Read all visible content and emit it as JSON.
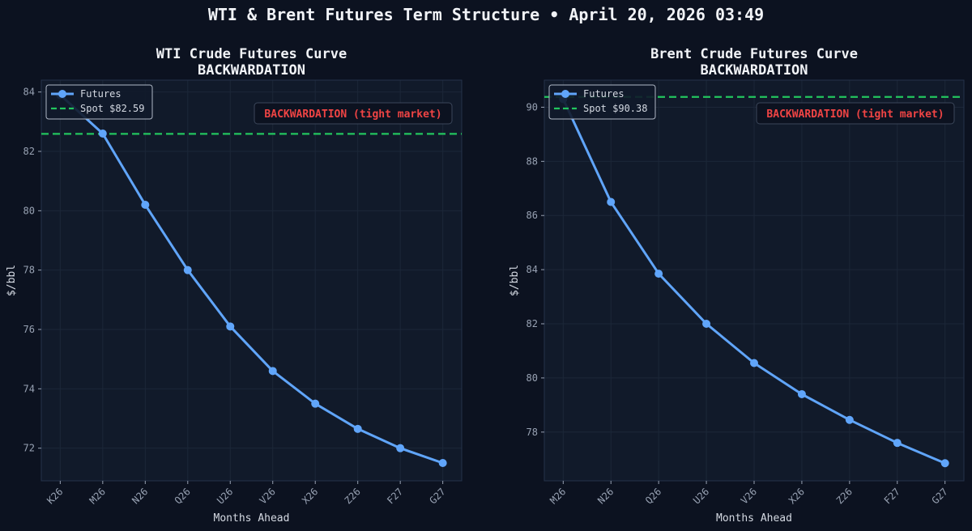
{
  "figure": {
    "title": "WTI & Brent Futures Term Structure • April 20, 2026 03:49"
  },
  "colors": {
    "background": "#0c1220",
    "plot_bg": "#111a2a",
    "grid": "#1c2738",
    "axis_frame": "#25324a",
    "tick_text": "#98a2b3",
    "label_text": "#d4d9e2",
    "futures_line": "#60a5fa",
    "spot_line": "#22c55e",
    "backwardation_text": "#ef4444",
    "legend_bg": "#111a2a",
    "legend_border": "#b0b8c6"
  },
  "chart_data": [
    {
      "type": "line",
      "title": "WTI Crude Futures Curve",
      "subtitle": "BACKWARDATION",
      "xlabel": "Months Ahead",
      "ylabel": "$/bbl",
      "categories": [
        "K26",
        "M26",
        "N26",
        "Q26",
        "U26",
        "V26",
        "X26",
        "Z26",
        "F27",
        "G27"
      ],
      "series": [
        {
          "name": "Futures",
          "values": [
            83.9,
            82.6,
            80.2,
            78.0,
            76.1,
            74.6,
            73.5,
            72.65,
            72.0,
            71.5
          ]
        }
      ],
      "spot": {
        "label": "Spot $82.59",
        "value": 82.59
      },
      "annotation": "BACKWARDATION (tight market)",
      "ylim": [
        70.9,
        84.4
      ],
      "yticks": [
        72,
        74,
        76,
        78,
        80,
        82,
        84
      ],
      "grid": true,
      "legend": "top-left"
    },
    {
      "type": "line",
      "title": "Brent Crude Futures Curve",
      "subtitle": "BACKWARDATION",
      "xlabel": "Months Ahead",
      "ylabel": "$/bbl",
      "categories": [
        "M26",
        "N26",
        "Q26",
        "U26",
        "V26",
        "X26",
        "Z26",
        "F27",
        "G27"
      ],
      "series": [
        {
          "name": "Futures",
          "values": [
            90.3,
            86.5,
            83.85,
            82.0,
            80.55,
            79.4,
            78.45,
            77.6,
            76.85
          ]
        }
      ],
      "spot": {
        "label": "Spot $90.38",
        "value": 90.38
      },
      "annotation": "BACKWARDATION (tight market)",
      "ylim": [
        76.2,
        91.0
      ],
      "yticks": [
        78,
        80,
        82,
        84,
        86,
        88,
        90
      ],
      "grid": true,
      "legend": "top-left"
    }
  ]
}
